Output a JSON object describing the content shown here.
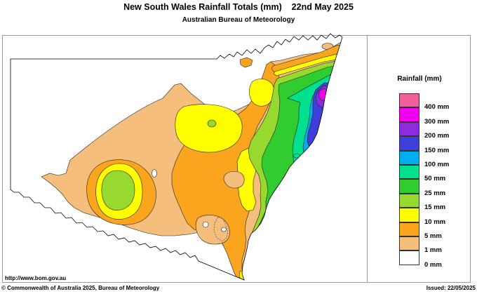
{
  "header": {
    "title": "New South Wales Rainfall Totals (mm)    22nd May 2025",
    "subtitle": "Australian Bureau of Meteorology"
  },
  "legend": {
    "title": "Rainfall (mm)",
    "entries": [
      {
        "label": "400 mm",
        "color": "#F2609A"
      },
      {
        "label": "300 mm",
        "color": "#EE00EE"
      },
      {
        "label": "200 mm",
        "color": "#8C2BE0"
      },
      {
        "label": "150 mm",
        "color": "#3F3FD9"
      },
      {
        "label": "100 mm",
        "color": "#00AEEF"
      },
      {
        "label": "50 mm",
        "color": "#00E08F"
      },
      {
        "label": "25 mm",
        "color": "#30CC30"
      },
      {
        "label": "15 mm",
        "color": "#97D92E"
      },
      {
        "label": "10 mm",
        "color": "#FEFE00"
      },
      {
        "label": "5 mm",
        "color": "#FBA51E"
      },
      {
        "label": "1 mm",
        "color": "#F6BE7D"
      },
      {
        "label": "0 mm",
        "color": "#FFFFFF"
      }
    ]
  },
  "map": {
    "url_label": "http://www.bom.gov.au",
    "region": "New South Wales",
    "outline_color": "#000000",
    "frame_color": "#9a9a9a"
  },
  "footer": {
    "copyright": "© Commonwealth of Australia 2025, Bureau of Meteorology",
    "issued": "Issued: 22/05/2025"
  }
}
